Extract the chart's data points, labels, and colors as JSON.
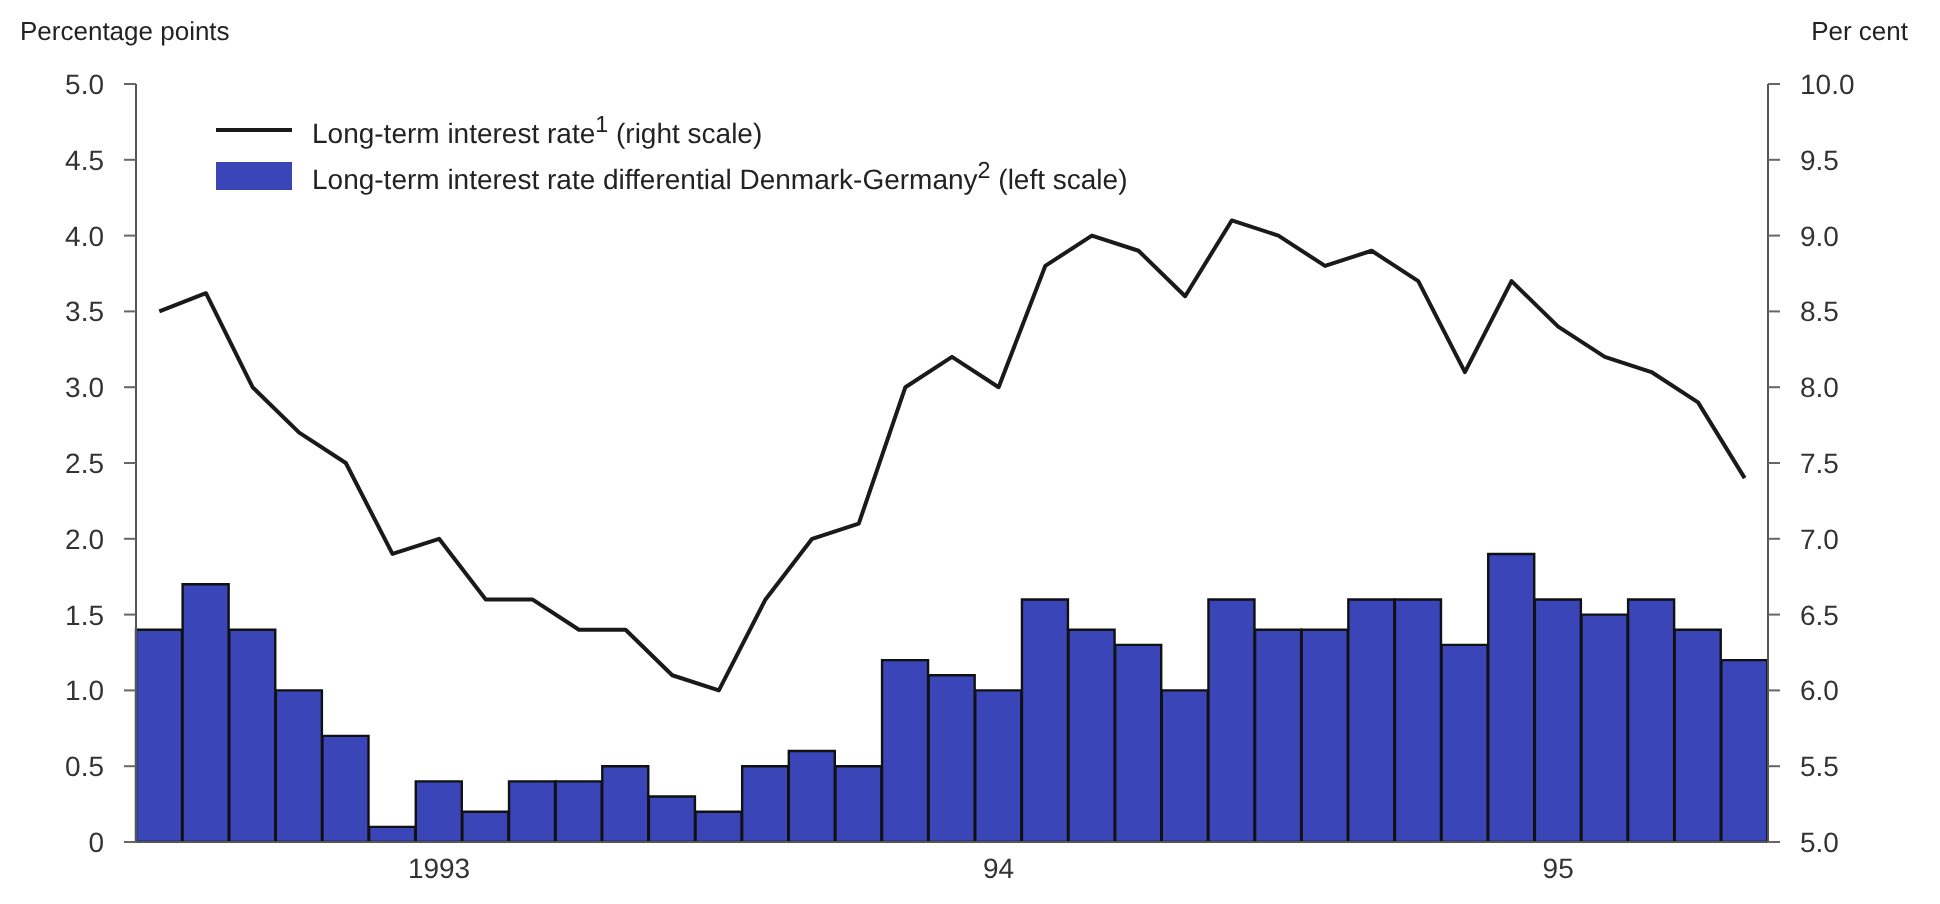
{
  "chart_data": {
    "type": "bar",
    "xlabel": null,
    "ylabel": "Percentage points",
    "y2label": "Per cent",
    "categories": [
      null,
      null,
      null,
      null,
      null,
      null,
      "1993",
      null,
      null,
      null,
      null,
      null,
      null,
      null,
      null,
      null,
      null,
      null,
      "94",
      null,
      null,
      null,
      null,
      null,
      null,
      null,
      null,
      null,
      null,
      null,
      "95",
      null,
      null,
      null,
      null
    ],
    "series": [
      {
        "name": "Long-term interest rate$^{1}$ (right scale)",
        "type": "line",
        "axis": "y2",
        "color": "#1a1a1a",
        "values": [
          8.5,
          8.62,
          8.0,
          7.7,
          7.5,
          6.9,
          7.0,
          6.6,
          6.6,
          6.4,
          6.4,
          6.1,
          6.0,
          6.6,
          7.0,
          7.1,
          8.0,
          8.2,
          8.0,
          8.8,
          9.0,
          8.9,
          8.6,
          9.1,
          9.0,
          8.8,
          8.9,
          8.7,
          8.1,
          8.7,
          8.4,
          8.2,
          8.1,
          7.9,
          7.4
        ]
      },
      {
        "name": "Long-term interest rate differential Denmark-Germany$^{2}$ (left scale)",
        "color": "#3a46b8",
        "values": [
          1.4,
          1.7,
          1.4,
          1.0,
          0.7,
          0.1,
          0.4,
          0.2,
          0.4,
          0.4,
          0.5,
          0.3,
          0.2,
          0.5,
          0.6,
          0.5,
          1.2,
          1.1,
          1.0,
          1.6,
          1.4,
          1.3,
          1.0,
          1.6,
          1.4,
          1.4,
          1.6,
          1.6,
          1.3,
          1.9,
          1.6,
          1.5,
          1.6,
          1.4,
          1.2
        ]
      }
    ],
    "ylim": [
      0,
      5
    ],
    "yticks": [
      0,
      {
        "value": 0.5,
        "label": "0.5"
      },
      {
        "value": 1,
        "label": "1.0"
      },
      {
        "value": 1.5,
        "label": "1.5"
      },
      {
        "value": 2,
        "label": "2.0"
      },
      {
        "value": 2.5,
        "label": "2.5"
      },
      {
        "value": 3,
        "label": "3.0"
      },
      {
        "value": 3.5,
        "label": "3.5"
      },
      {
        "value": 4,
        "label": "4.0"
      },
      {
        "value": 4.5,
        "label": "4.5"
      },
      {
        "value": 5,
        "label": "5.0"
      }
    ],
    "y2lim": [
      5,
      10
    ],
    "y2ticks": [
      {
        "value": 5,
        "label": "5.0"
      },
      {
        "value": 5.5,
        "label": "5.5"
      },
      {
        "value": 6,
        "label": "6.0"
      },
      {
        "value": 6.5,
        "label": "6.5"
      },
      {
        "value": 7,
        "label": "7.0"
      },
      {
        "value": 7.5,
        "label": "7.5"
      },
      {
        "value": 8,
        "label": "8.0"
      },
      {
        "value": 8.5,
        "label": "8.5"
      },
      {
        "value": 9,
        "label": "9.0"
      },
      {
        "value": 9.5,
        "label": "9.5"
      },
      {
        "value": 10,
        "label": "10.0"
      }
    ],
    "legend": "top left",
    "grid": false,
    "marker": "none",
    "line_style": "solid"
  }
}
